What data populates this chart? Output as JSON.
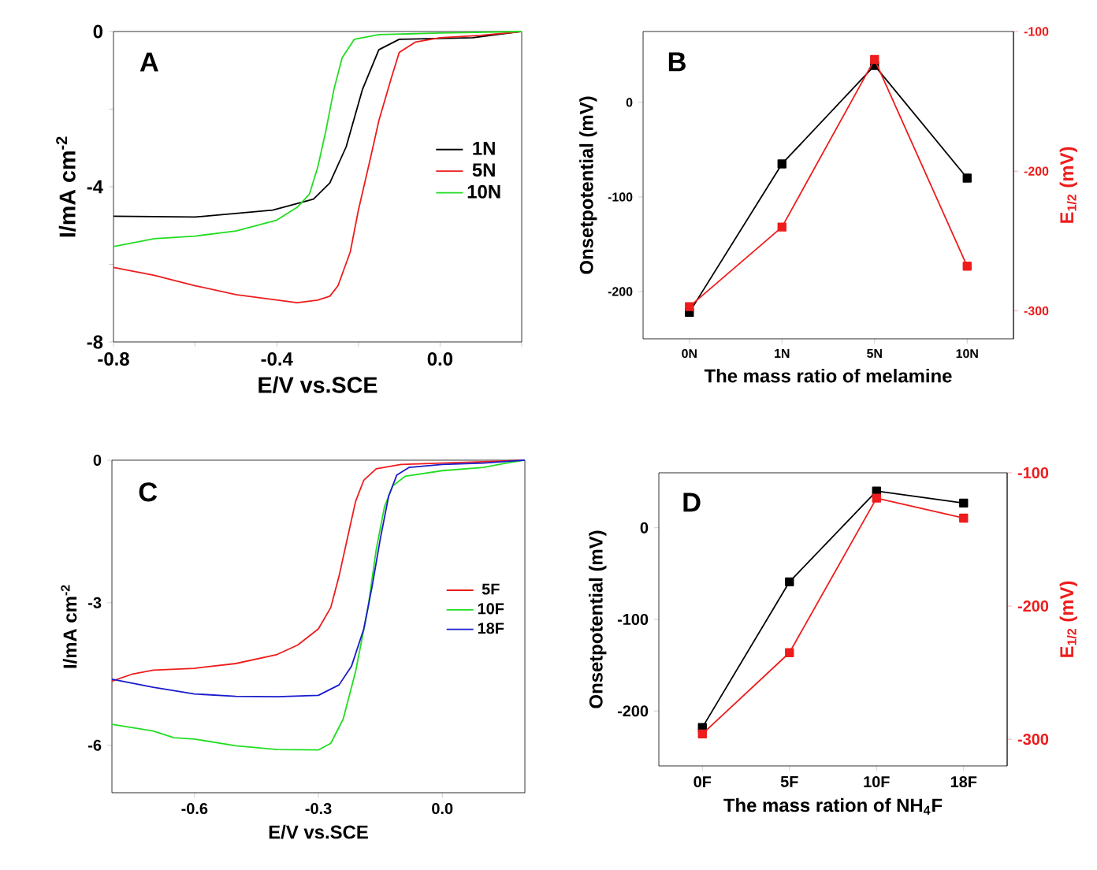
{
  "chart_data": [
    {
      "type": "line",
      "xlabel": "E/V vs.SCE",
      "ylabel": "I/mA cm$^{-2}$",
      "annotations": [
        "A"
      ],
      "legend": "right",
      "xlim": [
        -0.8,
        0.2
      ],
      "xticks": [
        -0.8,
        {
          "value": -0.6,
          "label": null
        },
        -0.4,
        {
          "value": -0.2,
          "label": null
        },
        {
          "value": 0,
          "label": "0.0"
        },
        {
          "value": 0.2,
          "label": null
        }
      ],
      "ylim": [
        -8,
        0
      ],
      "yticks": [
        -8,
        {
          "value": -6,
          "label": null
        },
        -4,
        {
          "value": -2,
          "label": null
        },
        0
      ],
      "series": [
        {
          "name": "1N",
          "color": "#000000",
          "x": [
            -0.8,
            -0.6,
            -0.41,
            -0.31,
            -0.27,
            -0.23,
            -0.19,
            -0.15,
            -0.1,
            0.08,
            0.2
          ],
          "values": [
            -4.76,
            -4.78,
            -4.6,
            -4.32,
            -3.9,
            -2.97,
            -1.49,
            -0.47,
            -0.2,
            -0.16,
            0
          ]
        },
        {
          "name": "5N",
          "color": "#ee1c1c",
          "x": [
            -0.8,
            -0.7,
            -0.6,
            -0.5,
            -0.4,
            -0.35,
            -0.3,
            -0.27,
            -0.25,
            -0.22,
            -0.2,
            -0.17,
            -0.15,
            -0.12,
            -0.1,
            -0.06,
            0,
            0.1,
            0.2
          ],
          "values": [
            -6.08,
            -6.28,
            -6.55,
            -6.78,
            -6.92,
            -6.99,
            -6.92,
            -6.82,
            -6.55,
            -5.68,
            -4.6,
            -3.24,
            -2.3,
            -1.22,
            -0.54,
            -0.27,
            -0.16,
            -0.1,
            0
          ]
        },
        {
          "name": "10N",
          "color": "#22dd22",
          "x": [
            -0.8,
            -0.7,
            -0.6,
            -0.5,
            -0.4,
            -0.35,
            -0.32,
            -0.3,
            -0.28,
            -0.26,
            -0.24,
            -0.21,
            -0.15,
            0,
            0.2
          ],
          "values": [
            -5.54,
            -5.34,
            -5.27,
            -5.14,
            -4.86,
            -4.53,
            -4.19,
            -3.51,
            -2.57,
            -1.49,
            -0.68,
            -0.2,
            -0.08,
            -0.04,
            0
          ]
        }
      ]
    },
    {
      "type": "line",
      "marker": "square",
      "xlabel": "The mass ratio of melamine",
      "ylabel": "Onsetpotential (mV)",
      "y2label": "E$_{1/2}$ (mV)",
      "annotations": [
        "B"
      ],
      "categories": [
        "0N",
        "1N",
        "5N",
        "10N"
      ],
      "ylim": [
        -250,
        75
      ],
      "yticks": [
        -200,
        -100,
        0
      ],
      "y2lim": [
        -320,
        -100
      ],
      "y2ticks": [
        -300,
        -200,
        -100
      ],
      "series": [
        {
          "color": "#000000",
          "axis": "y",
          "values": [
            -222,
            -65,
            39,
            -80
          ]
        },
        {
          "color": "#ee1c1c",
          "axis": "y2",
          "values": [
            -297,
            -240,
            -120,
            -268
          ]
        }
      ]
    },
    {
      "type": "line",
      "xlabel": "E/V vs.SCE",
      "ylabel": "I/mA cm$^{-2}$",
      "annotations": [
        "C"
      ],
      "legend": "right",
      "xlim": [
        -0.8,
        0.2
      ],
      "xticks": [
        -0.6,
        -0.3,
        {
          "value": 0,
          "label": "0.0"
        }
      ],
      "ylim": [
        -7,
        0
      ],
      "yticks": [
        -6,
        -3,
        0
      ],
      "series": [
        {
          "name": "5F",
          "color": "#ee1c1c",
          "x": [
            -0.8,
            -0.75,
            -0.7,
            -0.6,
            -0.5,
            -0.4,
            -0.35,
            -0.3,
            -0.27,
            -0.25,
            -0.23,
            -0.21,
            -0.19,
            -0.16,
            -0.1,
            0.1,
            0.2
          ],
          "values": [
            -4.65,
            -4.5,
            -4.42,
            -4.38,
            -4.28,
            -4.09,
            -3.89,
            -3.55,
            -3.1,
            -2.44,
            -1.65,
            -0.87,
            -0.42,
            -0.18,
            -0.09,
            -0.03,
            0
          ]
        },
        {
          "name": "10F",
          "color": "#22dd22",
          "x": [
            -0.8,
            -0.7,
            -0.65,
            -0.6,
            -0.5,
            -0.4,
            -0.3,
            -0.27,
            -0.24,
            -0.21,
            -0.18,
            -0.16,
            -0.14,
            -0.12,
            -0.09,
            0,
            0.1,
            0.15,
            0.2
          ],
          "values": [
            -5.56,
            -5.7,
            -5.84,
            -5.87,
            -6.01,
            -6.09,
            -6.1,
            -5.96,
            -5.45,
            -4.45,
            -3.11,
            -1.88,
            -0.98,
            -0.54,
            -0.34,
            -0.22,
            -0.15,
            -0.07,
            0
          ]
        },
        {
          "name": "18F",
          "color": "#1a1acc",
          "x": [
            -0.8,
            -0.7,
            -0.6,
            -0.5,
            -0.4,
            -0.3,
            -0.25,
            -0.22,
            -0.19,
            -0.17,
            -0.15,
            -0.13,
            -0.11,
            -0.08,
            0,
            0.1,
            0.2
          ],
          "values": [
            -4.61,
            -4.78,
            -4.92,
            -4.97,
            -4.98,
            -4.95,
            -4.73,
            -4.34,
            -3.55,
            -2.66,
            -1.65,
            -0.76,
            -0.31,
            -0.15,
            -0.09,
            -0.06,
            0
          ]
        }
      ]
    },
    {
      "type": "line",
      "marker": "square",
      "xlabel": "The mass ration of NH$_{4}$F",
      "ylabel": "Onsetpotential (mV)",
      "y2label": "E$_{1/2}$ (mV)",
      "annotations": [
        "D"
      ],
      "categories": [
        "0F",
        "5F",
        "10F",
        "18F"
      ],
      "ylim": [
        -260,
        60
      ],
      "yticks": [
        -200,
        -100,
        0
      ],
      "y2lim": [
        -320,
        -100
      ],
      "y2ticks": [
        -300,
        -200,
        -100
      ],
      "series": [
        {
          "color": "#000000",
          "axis": "y",
          "values": [
            -218,
            -59,
            40,
            27
          ]
        },
        {
          "color": "#ee1c1c",
          "axis": "y2",
          "values": [
            -296,
            -235,
            -119,
            -134
          ]
        }
      ]
    }
  ]
}
